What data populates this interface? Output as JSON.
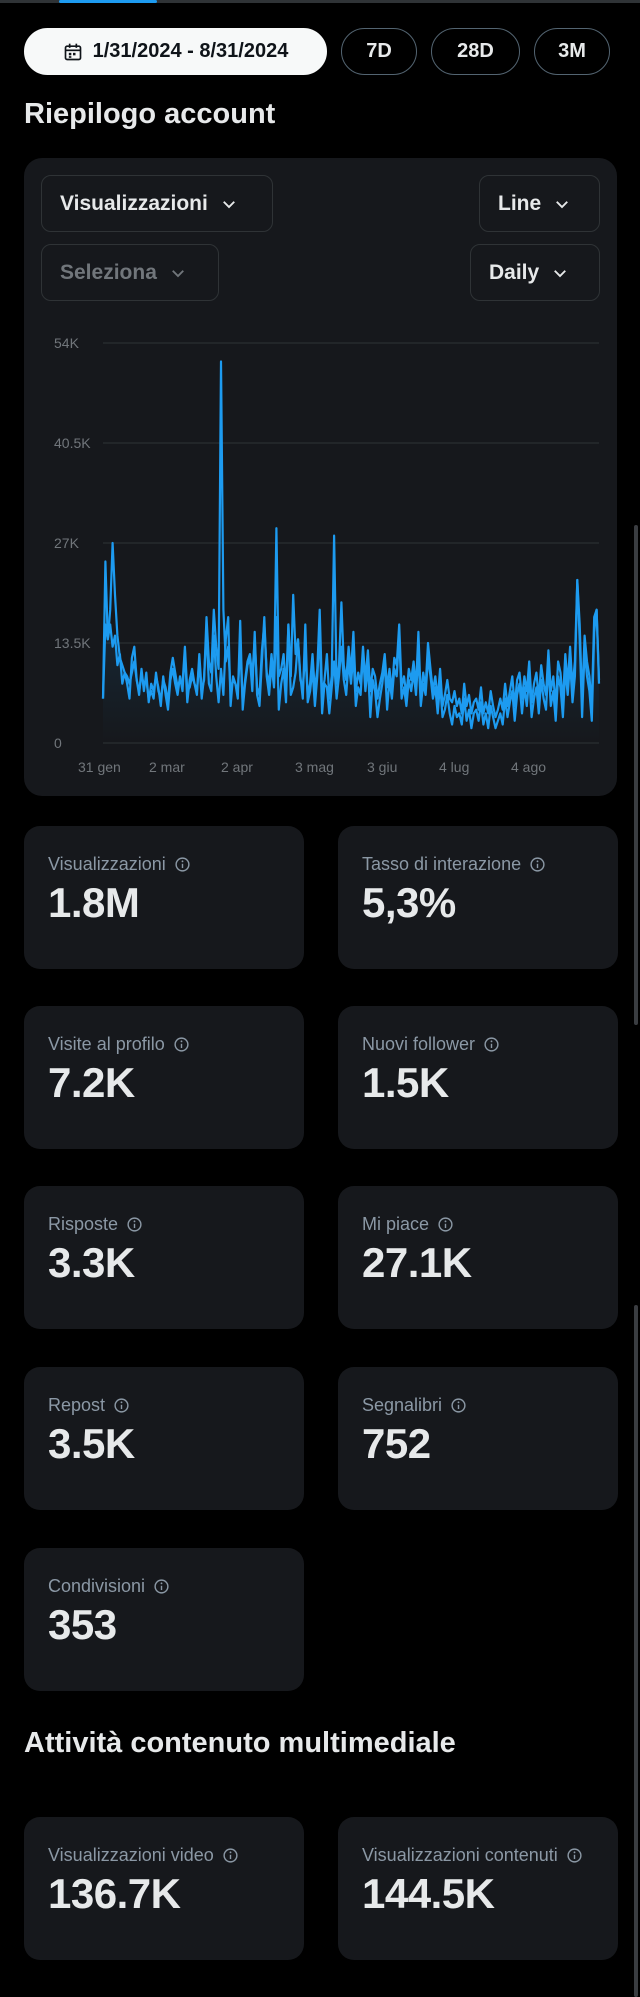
{
  "date_range": {
    "label": "1/31/2024 - 8/31/2024",
    "icon": "calendar-icon"
  },
  "range_buttons": [
    "7D",
    "28D",
    "3M"
  ],
  "summary_title": "Riepilogo account",
  "chart_controls": {
    "metric": "Visualizzazioni",
    "chart_type": "Line",
    "compare": "Seleziona",
    "interval": "Daily"
  },
  "chart_data": {
    "type": "line",
    "ylim": [
      0,
      54000
    ],
    "y_ticks": [
      "0",
      "13.5K",
      "27K",
      "40.5K",
      "54K"
    ],
    "x_ticks": [
      "31 gen",
      "2 mar",
      "2 apr",
      "3 mag",
      "3 giu",
      "4 lug",
      "4 ago"
    ],
    "series": [
      {
        "color": "#1d9bf0",
        "values": [
          6000,
          24500,
          14000,
          16000,
          13000,
          14500,
          10500,
          12000,
          8000,
          9500,
          8000,
          6000,
          11500,
          13000,
          8500,
          6500,
          10000,
          7000,
          9500,
          5500,
          8000,
          7000,
          9000,
          7500,
          5000,
          9000,
          6500,
          4500,
          8500,
          10000,
          8000,
          6500,
          9000,
          7000,
          12500,
          5500,
          8500,
          10000,
          8000,
          7000,
          11000,
          6000,
          9000,
          15000,
          8000,
          7000,
          14500,
          9000,
          5500,
          10000,
          6500,
          14000,
          17000,
          5000,
          9000,
          8000,
          6000,
          16500,
          4500,
          8000,
          10500,
          11500,
          7000,
          15000,
          6500,
          5000,
          11000,
          17000,
          9000,
          6500,
          10500,
          7500,
          17000,
          4500,
          8000,
          10000,
          5500,
          16000,
          6500,
          7500,
          9500,
          14000,
          9000,
          6000,
          16000,
          5500,
          7000,
          10000,
          5000,
          9000,
          15000,
          4000,
          8000,
          7500,
          4000,
          7500,
          11000,
          6000,
          9000,
          13000,
          8500,
          6500,
          11000,
          8000,
          12000,
          5000,
          7500,
          6500,
          12000,
          7000,
          10500,
          3500,
          8500,
          7000,
          3500,
          6000,
          8000,
          11000,
          4500,
          8500,
          6000,
          10000,
          9000,
          14500,
          6000,
          7500,
          5000,
          8500,
          7000,
          9500,
          6500,
          12000,
          5000,
          8000,
          6500,
          11500,
          9000,
          6000,
          7500,
          4000,
          8000,
          3500,
          4500,
          6500,
          4000,
          2500,
          5000,
          3500,
          4000,
          2500,
          6000,
          3000,
          4500,
          2000,
          4000,
          4500,
          3000,
          5500,
          2500,
          4000,
          2000,
          5000,
          3500,
          2000,
          3000,
          4000,
          2500,
          6000,
          3500,
          5500,
          7000,
          3000,
          6500,
          8000,
          4000,
          7500,
          5000,
          9000,
          3500,
          6000,
          7500,
          4000,
          8500,
          6000,
          4500,
          10500,
          5000,
          7000,
          3000,
          9000,
          7500,
          3500,
          10000,
          6500,
          11000,
          5500,
          9000,
          22000,
          14000,
          3500,
          12500,
          9000,
          7000,
          3000,
          15000,
          18000,
          8500
        ]
      },
      {
        "color": "#1d9bf0",
        "values": [
          6000,
          16000,
          14000,
          18000,
          27000,
          20000,
          14500,
          11500,
          10500,
          9500,
          9000,
          8000,
          9500,
          11000,
          8500,
          7000,
          9000,
          8000,
          8500,
          6000,
          7000,
          6000,
          9500,
          7000,
          6000,
          8500,
          7500,
          5500,
          9500,
          11500,
          9500,
          7500,
          8500,
          8000,
          13000,
          7000,
          7500,
          9000,
          8000,
          6500,
          12000,
          7000,
          8500,
          17000,
          11000,
          9500,
          18000,
          13000,
          10000,
          51500,
          18000,
          11000,
          13000,
          7000,
          8500,
          8000,
          7000,
          13000,
          5500,
          8500,
          11000,
          12000,
          9000,
          14000,
          7500,
          6500,
          12500,
          16000,
          9500,
          8000,
          12000,
          8000,
          29000,
          9000,
          10000,
          12000,
          7000,
          16000,
          9000,
          20000,
          12000,
          14000,
          8500,
          7500,
          12000,
          6500,
          8000,
          12000,
          7000,
          10000,
          18000,
          6500,
          8500,
          12000,
          6000,
          9000,
          28000,
          8000,
          10500,
          19000,
          10500,
          8500,
          13000,
          9500,
          15000,
          7000,
          9500,
          8000,
          13000,
          8500,
          12500,
          7000,
          10000,
          9000,
          6000,
          8000,
          9500,
          12000,
          7500,
          10000,
          7000,
          11500,
          10500,
          16000,
          7500,
          9000,
          6500,
          10000,
          8500,
          11000,
          7500,
          15000,
          6000,
          9500,
          7500,
          13500,
          10000,
          7000,
          9000,
          6000,
          10000,
          5000,
          6500,
          8500,
          6000,
          5500,
          7000,
          5000,
          6000,
          4000,
          8000,
          5000,
          6500,
          4000,
          5500,
          6000,
          4500,
          7500,
          4000,
          5500,
          4000,
          7000,
          5000,
          3500,
          4500,
          6000,
          4500,
          8000,
          5000,
          7000,
          9000,
          5000,
          8500,
          9500,
          6000,
          9000,
          7000,
          11000,
          5500,
          8000,
          9500,
          6000,
          10500,
          8000,
          6500,
          12500,
          7000,
          9000,
          5000,
          11000,
          9500,
          5500,
          12000,
          8000,
          13000,
          7500,
          11000,
          22000,
          16000,
          5500,
          14500,
          11000,
          9000,
          5000,
          17000,
          18000,
          8000
        ]
      }
    ]
  },
  "stats": [
    {
      "label": "Visualizzazioni",
      "value": "1.8M"
    },
    {
      "label": "Tasso di interazione",
      "value": "5,3%"
    },
    {
      "label": "Visite al profilo",
      "value": "7.2K"
    },
    {
      "label": "Nuovi follower",
      "value": "1.5K"
    },
    {
      "label": "Risposte",
      "value": "3.3K"
    },
    {
      "label": "Mi piace",
      "value": "27.1K"
    },
    {
      "label": "Repost",
      "value": "3.5K"
    },
    {
      "label": "Segnalibri",
      "value": "752"
    },
    {
      "label": "Condivisioni",
      "value": "353"
    }
  ],
  "media_title": "Attività contenuto multimediale",
  "media_stats": [
    {
      "label": "Visualizzazioni video",
      "value": "136.7K"
    },
    {
      "label": "Visualizzazioni contenuti",
      "value": "144.5K"
    }
  ]
}
